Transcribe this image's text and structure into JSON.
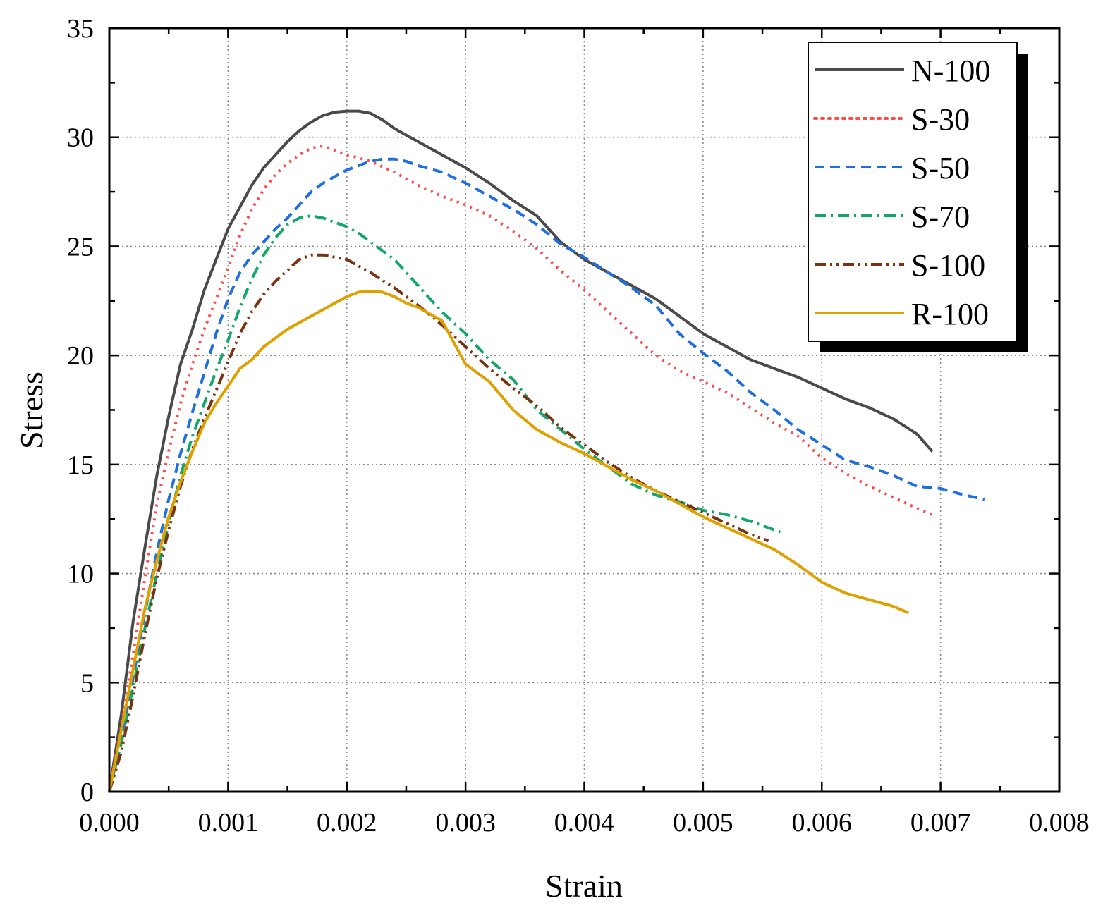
{
  "chart_data": {
    "type": "line",
    "title": "",
    "xlabel": "Strain",
    "ylabel": "Stress",
    "xlim": [
      0.0,
      0.008
    ],
    "ylim": [
      0,
      35
    ],
    "xticks": [
      0.0,
      0.001,
      0.002,
      0.003,
      0.004,
      0.005,
      0.006,
      0.007,
      0.008
    ],
    "xtick_labels": [
      "0.000",
      "0.001",
      "0.002",
      "0.003",
      "0.004",
      "0.005",
      "0.006",
      "0.007",
      "0.008"
    ],
    "yticks": [
      0,
      5,
      10,
      15,
      20,
      25,
      30,
      35
    ],
    "ytick_labels": [
      "0",
      "5",
      "10",
      "15",
      "20",
      "25",
      "30",
      "35"
    ],
    "grid": true,
    "legend_position": "top-right",
    "series": [
      {
        "name": "N-100",
        "color": "#4a4a4a",
        "dash": "solid",
        "points": [
          [
            0,
            0
          ],
          [
            0.0001,
            3.5
          ],
          [
            0.0002,
            7.8
          ],
          [
            0.0003,
            11.2
          ],
          [
            0.0004,
            14.5
          ],
          [
            0.0005,
            17.2
          ],
          [
            0.0006,
            19.6
          ],
          [
            0.0007,
            21.2
          ],
          [
            0.0008,
            23.0
          ],
          [
            0.0009,
            24.4
          ],
          [
            0.001,
            25.8
          ],
          [
            0.0011,
            26.8
          ],
          [
            0.0012,
            27.8
          ],
          [
            0.0013,
            28.6
          ],
          [
            0.0014,
            29.2
          ],
          [
            0.0015,
            29.8
          ],
          [
            0.0016,
            30.3
          ],
          [
            0.0017,
            30.7
          ],
          [
            0.0018,
            31.0
          ],
          [
            0.0019,
            31.15
          ],
          [
            0.002,
            31.2
          ],
          [
            0.0021,
            31.2
          ],
          [
            0.0022,
            31.1
          ],
          [
            0.0023,
            30.8
          ],
          [
            0.0024,
            30.4
          ],
          [
            0.0025,
            30.1
          ],
          [
            0.0026,
            29.8
          ],
          [
            0.0028,
            29.2
          ],
          [
            0.003,
            28.6
          ],
          [
            0.0032,
            27.9
          ],
          [
            0.0034,
            27.1
          ],
          [
            0.0036,
            26.4
          ],
          [
            0.0038,
            25.2
          ],
          [
            0.004,
            24.4
          ],
          [
            0.0042,
            23.8
          ],
          [
            0.0044,
            23.2
          ],
          [
            0.0046,
            22.6
          ],
          [
            0.0048,
            21.8
          ],
          [
            0.005,
            21.0
          ],
          [
            0.0052,
            20.4
          ],
          [
            0.0054,
            19.8
          ],
          [
            0.0056,
            19.4
          ],
          [
            0.0058,
            19.0
          ],
          [
            0.006,
            18.5
          ],
          [
            0.0062,
            18.0
          ],
          [
            0.0064,
            17.6
          ],
          [
            0.0066,
            17.1
          ],
          [
            0.0068,
            16.4
          ],
          [
            0.00693,
            15.6
          ]
        ]
      },
      {
        "name": "S-30",
        "color": "#ff4a4a",
        "dash": "dotted",
        "points": [
          [
            0,
            0
          ],
          [
            0.0001,
            3.0
          ],
          [
            0.0002,
            6.3
          ],
          [
            0.0003,
            9.8
          ],
          [
            0.0004,
            13.2
          ],
          [
            0.0005,
            15.6
          ],
          [
            0.0006,
            17.8
          ],
          [
            0.0007,
            19.6
          ],
          [
            0.0008,
            21.2
          ],
          [
            0.0009,
            22.6
          ],
          [
            0.001,
            24.0
          ],
          [
            0.0011,
            25.5
          ],
          [
            0.0012,
            26.7
          ],
          [
            0.0013,
            27.6
          ],
          [
            0.0014,
            28.3
          ],
          [
            0.0015,
            28.8
          ],
          [
            0.0016,
            29.2
          ],
          [
            0.0017,
            29.5
          ],
          [
            0.0018,
            29.6
          ],
          [
            0.0019,
            29.4
          ],
          [
            0.002,
            29.2
          ],
          [
            0.0022,
            28.9
          ],
          [
            0.0024,
            28.4
          ],
          [
            0.0026,
            27.8
          ],
          [
            0.0028,
            27.3
          ],
          [
            0.003,
            26.9
          ],
          [
            0.0032,
            26.4
          ],
          [
            0.0034,
            25.7
          ],
          [
            0.0036,
            24.9
          ],
          [
            0.0038,
            23.9
          ],
          [
            0.004,
            23.0
          ],
          [
            0.0042,
            22.0
          ],
          [
            0.0044,
            21.0
          ],
          [
            0.0046,
            20.0
          ],
          [
            0.0048,
            19.3
          ],
          [
            0.005,
            18.8
          ],
          [
            0.0052,
            18.3
          ],
          [
            0.0054,
            17.6
          ],
          [
            0.0056,
            16.9
          ],
          [
            0.0058,
            16.3
          ],
          [
            0.006,
            15.3
          ],
          [
            0.0062,
            14.6
          ],
          [
            0.0064,
            14.0
          ],
          [
            0.0066,
            13.5
          ],
          [
            0.0068,
            13.0
          ],
          [
            0.00693,
            12.7
          ]
        ]
      },
      {
        "name": "S-50",
        "color": "#1f6fe0",
        "dash": "dashed",
        "points": [
          [
            0,
            0
          ],
          [
            0.0001,
            2.4
          ],
          [
            0.0002,
            5.2
          ],
          [
            0.0003,
            8.2
          ],
          [
            0.0004,
            11.0
          ],
          [
            0.0005,
            13.4
          ],
          [
            0.0006,
            15.5
          ],
          [
            0.0007,
            17.4
          ],
          [
            0.0008,
            19.2
          ],
          [
            0.0009,
            21.0
          ],
          [
            0.001,
            22.6
          ],
          [
            0.0011,
            23.8
          ],
          [
            0.0012,
            24.6
          ],
          [
            0.0013,
            25.2
          ],
          [
            0.0014,
            25.8
          ],
          [
            0.0015,
            26.3
          ],
          [
            0.0016,
            26.9
          ],
          [
            0.0017,
            27.5
          ],
          [
            0.0018,
            27.9
          ],
          [
            0.0019,
            28.2
          ],
          [
            0.002,
            28.5
          ],
          [
            0.0021,
            28.7
          ],
          [
            0.0022,
            28.9
          ],
          [
            0.0023,
            29.0
          ],
          [
            0.0024,
            29.0
          ],
          [
            0.0025,
            28.9
          ],
          [
            0.0026,
            28.7
          ],
          [
            0.0028,
            28.4
          ],
          [
            0.003,
            27.9
          ],
          [
            0.0032,
            27.3
          ],
          [
            0.0034,
            26.7
          ],
          [
            0.0036,
            26.0
          ],
          [
            0.0038,
            25.1
          ],
          [
            0.004,
            24.5
          ],
          [
            0.0042,
            23.8
          ],
          [
            0.0044,
            23.1
          ],
          [
            0.0046,
            22.3
          ],
          [
            0.0048,
            21.0
          ],
          [
            0.005,
            20.1
          ],
          [
            0.0052,
            19.3
          ],
          [
            0.0054,
            18.3
          ],
          [
            0.0056,
            17.5
          ],
          [
            0.0058,
            16.6
          ],
          [
            0.006,
            15.9
          ],
          [
            0.0062,
            15.2
          ],
          [
            0.0064,
            14.9
          ],
          [
            0.0066,
            14.5
          ],
          [
            0.0068,
            14.0
          ],
          [
            0.007,
            13.9
          ],
          [
            0.0072,
            13.6
          ],
          [
            0.00737,
            13.4
          ]
        ]
      },
      {
        "name": "S-70",
        "color": "#13a86b",
        "dash": "dashdot",
        "points": [
          [
            0,
            0
          ],
          [
            0.0001,
            2.2
          ],
          [
            0.0002,
            4.8
          ],
          [
            0.0003,
            7.5
          ],
          [
            0.0004,
            10.0
          ],
          [
            0.0005,
            12.3
          ],
          [
            0.0006,
            14.5
          ],
          [
            0.0007,
            16.3
          ],
          [
            0.0008,
            17.8
          ],
          [
            0.0009,
            19.3
          ],
          [
            0.001,
            20.7
          ],
          [
            0.0011,
            22.2
          ],
          [
            0.0012,
            23.5
          ],
          [
            0.0013,
            24.6
          ],
          [
            0.0014,
            25.4
          ],
          [
            0.0015,
            26.0
          ],
          [
            0.0016,
            26.3
          ],
          [
            0.0017,
            26.4
          ],
          [
            0.0018,
            26.3
          ],
          [
            0.0019,
            26.1
          ],
          [
            0.002,
            25.9
          ],
          [
            0.0021,
            25.6
          ],
          [
            0.0022,
            25.2
          ],
          [
            0.0024,
            24.4
          ],
          [
            0.0026,
            23.2
          ],
          [
            0.0028,
            22.0
          ],
          [
            0.003,
            21.0
          ],
          [
            0.0032,
            19.8
          ],
          [
            0.0034,
            18.9
          ],
          [
            0.0036,
            17.5
          ],
          [
            0.0038,
            16.6
          ],
          [
            0.004,
            15.7
          ],
          [
            0.0042,
            14.9
          ],
          [
            0.0044,
            14.1
          ],
          [
            0.0046,
            13.6
          ],
          [
            0.0048,
            13.3
          ],
          [
            0.005,
            12.9
          ],
          [
            0.0052,
            12.7
          ],
          [
            0.0054,
            12.4
          ],
          [
            0.00565,
            11.9
          ]
        ]
      },
      {
        "name": "S-100",
        "color": "#7a3310",
        "dash": "dashdotdot",
        "points": [
          [
            0,
            0
          ],
          [
            0.0001,
            1.8
          ],
          [
            0.0002,
            4.4
          ],
          [
            0.0003,
            7.2
          ],
          [
            0.0004,
            9.8
          ],
          [
            0.0005,
            12.0
          ],
          [
            0.0006,
            14.0
          ],
          [
            0.0007,
            15.7
          ],
          [
            0.0008,
            17.1
          ],
          [
            0.0009,
            18.4
          ],
          [
            0.001,
            19.7
          ],
          [
            0.0011,
            21.0
          ],
          [
            0.0012,
            22.0
          ],
          [
            0.0013,
            22.8
          ],
          [
            0.0014,
            23.4
          ],
          [
            0.0015,
            23.9
          ],
          [
            0.0016,
            24.4
          ],
          [
            0.0017,
            24.6
          ],
          [
            0.0018,
            24.6
          ],
          [
            0.0019,
            24.5
          ],
          [
            0.002,
            24.4
          ],
          [
            0.0021,
            24.1
          ],
          [
            0.0022,
            23.8
          ],
          [
            0.0024,
            23.1
          ],
          [
            0.0026,
            22.3
          ],
          [
            0.0028,
            21.4
          ],
          [
            0.003,
            20.4
          ],
          [
            0.0032,
            19.4
          ],
          [
            0.0034,
            18.5
          ],
          [
            0.0036,
            17.7
          ],
          [
            0.0038,
            16.7
          ],
          [
            0.004,
            15.9
          ],
          [
            0.0042,
            15.1
          ],
          [
            0.0044,
            14.4
          ],
          [
            0.0046,
            13.8
          ],
          [
            0.0048,
            13.3
          ],
          [
            0.005,
            12.8
          ],
          [
            0.0052,
            12.3
          ],
          [
            0.0054,
            11.8
          ],
          [
            0.00555,
            11.5
          ]
        ]
      },
      {
        "name": "R-100",
        "color": "#e0a000",
        "dash": "solid",
        "points": [
          [
            0,
            0
          ],
          [
            0.0001,
            2.8
          ],
          [
            0.0002,
            5.6
          ],
          [
            0.0003,
            8.4
          ],
          [
            0.0004,
            10.6
          ],
          [
            0.0005,
            12.6
          ],
          [
            0.0006,
            14.2
          ],
          [
            0.0007,
            15.6
          ],
          [
            0.0008,
            16.9
          ],
          [
            0.0009,
            17.8
          ],
          [
            0.001,
            18.6
          ],
          [
            0.0011,
            19.4
          ],
          [
            0.0012,
            19.8
          ],
          [
            0.0013,
            20.4
          ],
          [
            0.0014,
            20.8
          ],
          [
            0.0015,
            21.2
          ],
          [
            0.0016,
            21.5
          ],
          [
            0.0017,
            21.8
          ],
          [
            0.0018,
            22.1
          ],
          [
            0.0019,
            22.4
          ],
          [
            0.002,
            22.7
          ],
          [
            0.0021,
            22.9
          ],
          [
            0.0022,
            22.95
          ],
          [
            0.0023,
            22.9
          ],
          [
            0.0024,
            22.7
          ],
          [
            0.0025,
            22.4
          ],
          [
            0.0026,
            22.2
          ],
          [
            0.0028,
            21.6
          ],
          [
            0.003,
            19.6
          ],
          [
            0.0032,
            18.8
          ],
          [
            0.0034,
            17.5
          ],
          [
            0.0036,
            16.6
          ],
          [
            0.0038,
            16.0
          ],
          [
            0.004,
            15.5
          ],
          [
            0.0042,
            14.9
          ],
          [
            0.0044,
            14.3
          ],
          [
            0.0046,
            13.8
          ],
          [
            0.0048,
            13.2
          ],
          [
            0.005,
            12.6
          ],
          [
            0.0052,
            12.1
          ],
          [
            0.0054,
            11.6
          ],
          [
            0.0056,
            11.1
          ],
          [
            0.0058,
            10.4
          ],
          [
            0.006,
            9.6
          ],
          [
            0.0062,
            9.1
          ],
          [
            0.0064,
            8.8
          ],
          [
            0.0066,
            8.5
          ],
          [
            0.00673,
            8.2
          ]
        ]
      }
    ]
  }
}
